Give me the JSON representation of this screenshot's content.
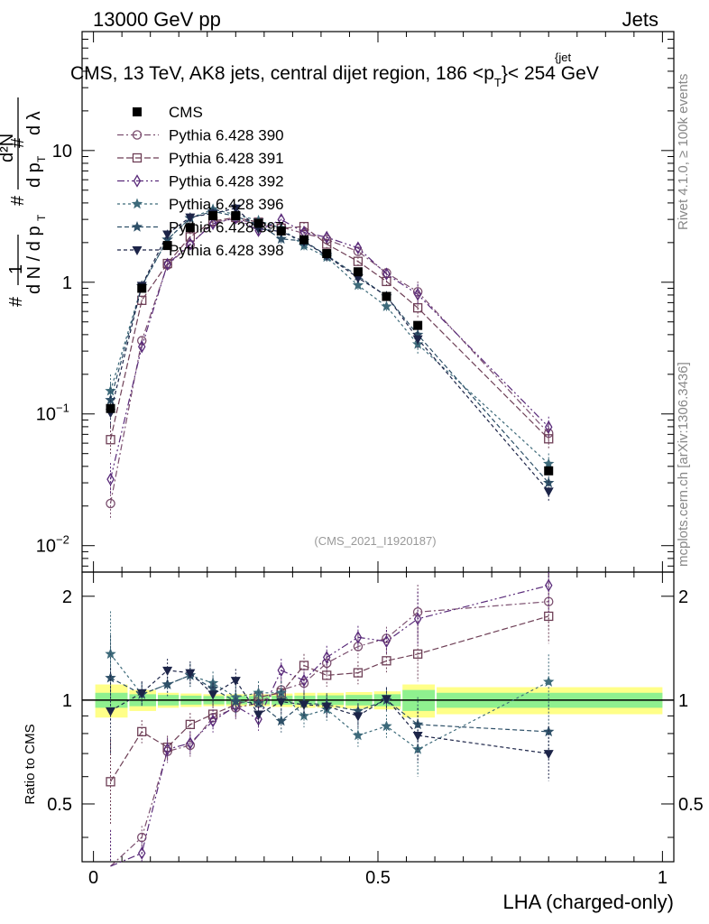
{
  "header": {
    "left": "13000 GeV pp",
    "right": "Jets",
    "plot_title": "CMS, 13 TeV, AK8 jets, central dijet region, 186 <p",
    "plot_title_sub": "T",
    "plot_title_sup": "{jet",
    "plot_title_end": "}< 254 GeV",
    "side_rivet": "Rivet 4.1.0, ≥ 100k events",
    "side_mcplots": "mcplots.cern.ch [arXiv:1306.3436]",
    "watermark": "(CMS_2021_I1920187)"
  },
  "colors": {
    "cms": "#000000",
    "p390": "#7b4f6f",
    "p391": "#6e3f56",
    "p392": "#5a2b7a",
    "p396": "#3d6a7a",
    "p397": "#2e5068",
    "p398": "#1c2448",
    "band_inner": "#8ff08f",
    "band_outer": "#ffff88"
  },
  "chart_data": {
    "type": "scatter",
    "title": "CMS, 13 TeV, AK8 jets, central dijet region, 186 < pT jet < 254 GeV",
    "xlabel": "LHA (charged-only)",
    "ylabel_main": "1/(dN/dpT) d²N/(dpT dλ)",
    "ylabel_ratio": "Ratio to CMS",
    "xlim": [
      -0.02,
      1.02
    ],
    "ylim_main": [
      0.0063,
      80
    ],
    "ylim_ratio": [
      0.34,
      2.35
    ],
    "yscale_main": "log",
    "yscale_ratio": "log",
    "x_ticks": [
      0,
      0.5,
      1
    ],
    "x_tick_labels": [
      "0",
      "0.5",
      "1"
    ],
    "ratio_ticks": [
      0.5,
      1,
      2
    ],
    "ratio_tick_labels": [
      "0.5",
      "1",
      "2"
    ],
    "x": [
      0.03,
      0.085,
      0.13,
      0.17,
      0.21,
      0.25,
      0.29,
      0.33,
      0.37,
      0.41,
      0.465,
      0.515,
      0.57,
      0.8
    ],
    "bins": [
      [
        0.0,
        0.06
      ],
      [
        0.06,
        0.11
      ],
      [
        0.11,
        0.15
      ],
      [
        0.15,
        0.19
      ],
      [
        0.19,
        0.23
      ],
      [
        0.23,
        0.27
      ],
      [
        0.27,
        0.31
      ],
      [
        0.31,
        0.35
      ],
      [
        0.35,
        0.39
      ],
      [
        0.39,
        0.44
      ],
      [
        0.44,
        0.49
      ],
      [
        0.49,
        0.54
      ],
      [
        0.54,
        0.6
      ],
      [
        0.6,
        1.0
      ]
    ],
    "cms": {
      "name": "CMS",
      "values": [
        0.11,
        0.9,
        1.9,
        2.6,
        3.2,
        3.2,
        2.8,
        2.45,
        2.1,
        1.65,
        1.2,
        0.78,
        0.47,
        0.037
      ],
      "band_inner": [
        0.05,
        0.04,
        0.035,
        0.03,
        0.028,
        0.028,
        0.028,
        0.03,
        0.03,
        0.032,
        0.035,
        0.04,
        0.07,
        0.05
      ],
      "band_outer": [
        0.11,
        0.07,
        0.05,
        0.045,
        0.04,
        0.04,
        0.04,
        0.045,
        0.05,
        0.05,
        0.055,
        0.06,
        0.11,
        0.09
      ]
    },
    "legend": [
      "CMS",
      "Pythia 6.428 390",
      "Pythia 6.428 391",
      "Pythia 6.428 392",
      "Pythia 6.428 396",
      "Pythia 6.428 397",
      "Pythia 6.428 398"
    ],
    "series": [
      {
        "name": "Pythia 6.428 390",
        "key": "p390",
        "marker": "circle",
        "dash": "7,3,2,3",
        "ratios": [
          0.19,
          0.4,
          0.71,
          0.74,
          0.89,
          0.95,
          0.98,
          1.07,
          1.12,
          1.28,
          1.43,
          1.51,
          1.8,
          1.93
        ]
      },
      {
        "name": "Pythia 6.428 391",
        "key": "p391",
        "marker": "square",
        "dash": "7,3",
        "ratios": [
          0.58,
          0.81,
          0.73,
          0.85,
          0.91,
          0.97,
          1.02,
          1.05,
          1.26,
          1.18,
          1.2,
          1.3,
          1.36,
          1.75
        ]
      },
      {
        "name": "Pythia 6.428 392",
        "key": "p392",
        "marker": "diamond",
        "dash": "8,3,2,3,2,3",
        "ratios": [
          0.29,
          0.36,
          0.72,
          0.75,
          0.87,
          0.96,
          0.88,
          1.22,
          1.14,
          1.33,
          1.52,
          1.48,
          1.72,
          2.15
        ]
      },
      {
        "name": "Pythia 6.428 396",
        "key": "p396",
        "marker": "star",
        "dash": "3,3",
        "ratios": [
          1.36,
          1.04,
          1.11,
          1.18,
          1.12,
          1.02,
          1.05,
          1.05,
          0.9,
          0.94,
          0.79,
          0.84,
          0.72,
          1.13
        ]
      },
      {
        "name": "Pythia 6.428 397",
        "key": "p397",
        "marker": "star",
        "dash": "5,3",
        "ratios": [
          1.16,
          1.04,
          1.11,
          1.18,
          1.08,
          0.99,
          0.98,
          0.87,
          0.98,
          0.97,
          0.93,
          1.0,
          0.85,
          0.81
        ]
      },
      {
        "name": "Pythia 6.428 398",
        "key": "p398",
        "marker": "triangle-down",
        "dash": "4,3",
        "ratios": [
          0.93,
          1.05,
          1.22,
          1.2,
          1.04,
          1.14,
          0.91,
          0.99,
          0.97,
          0.96,
          0.9,
          1.01,
          0.79,
          0.7
        ]
      }
    ]
  }
}
